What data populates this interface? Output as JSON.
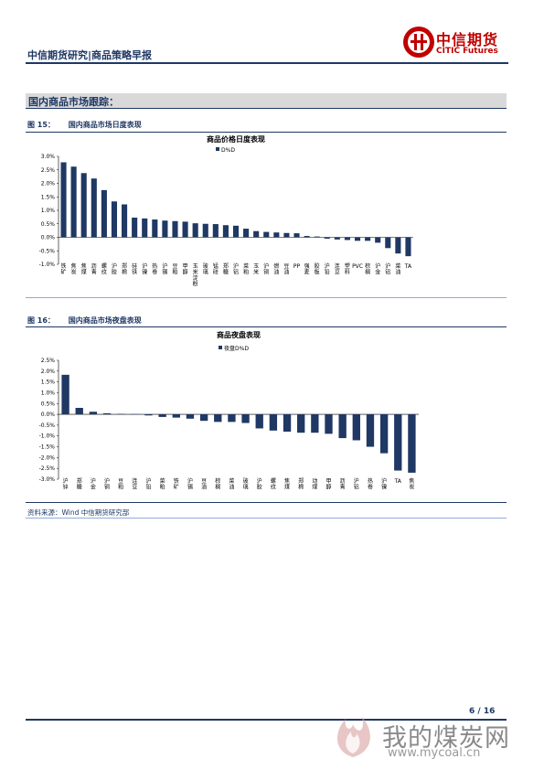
{
  "header": {
    "title": "中信期货研究|商品策略早报",
    "logo_cn": "中信期货",
    "logo_en": "CITIC Futures"
  },
  "section": {
    "title": "国内商品市场跟踪："
  },
  "figure15": {
    "number": "图 15：",
    "caption": "国内商品市场日度表现"
  },
  "figure16": {
    "number": "图 16：",
    "caption": "国内商品市场夜盘表现"
  },
  "source": "资料来源：Wind  中信期货研究部",
  "page": "6 / 16",
  "watermark": {
    "cn": "我的煤炭网",
    "url": "www.mycoal.cn"
  },
  "colors": {
    "bar": "#1f3864",
    "brand_red": "#c00000",
    "section_bg": "#d9d9d9"
  },
  "chart_data": [
    {
      "type": "bar",
      "title": "商品价格日度表现",
      "legend": [
        "D%D"
      ],
      "legend_position": "top-center",
      "ylim": [
        -0.01,
        0.03
      ],
      "yticks": [
        "3.0%",
        "2.5%",
        "2.0%",
        "1.5%",
        "1.0%",
        "0.5%",
        "0.0%",
        "-0.5%",
        "-1.0%"
      ],
      "grid": false,
      "categories": [
        "铁矿",
        "焦炭",
        "焦煤",
        "沥青",
        "螺纹",
        "沪胶",
        "郑棉",
        "硅铁",
        "沪镍",
        "热卷",
        "沪锡",
        "豆粕",
        "甲醇",
        "玉米淀粉",
        "玻璃",
        "锰硅",
        "郑糖",
        "沪铝",
        "菜粕",
        "玉米",
        "沪铜",
        "燃油",
        "豆油",
        "PP",
        "强麦",
        "胶板",
        "沪铅",
        "连豆",
        "塑料",
        "PVC",
        "棕榈",
        "沪金",
        "沪铝",
        "菜油",
        "TA"
      ],
      "series": [
        {
          "name": "D%D",
          "values": [
            0.0278,
            0.0262,
            0.0238,
            0.0218,
            0.0175,
            0.0133,
            0.0122,
            0.0073,
            0.007,
            0.0066,
            0.0062,
            0.006,
            0.0058,
            0.0052,
            0.005,
            0.0049,
            0.0045,
            0.0043,
            0.0032,
            0.0023,
            0.002,
            0.0018,
            0.0016,
            0.0015,
            0.0005,
            0.0003,
            -0.0005,
            -0.0008,
            -0.001,
            -0.0013,
            -0.0013,
            -0.002,
            -0.004,
            -0.006,
            -0.007
          ]
        }
      ]
    },
    {
      "type": "bar",
      "title": "商品夜盘表现",
      "legend": [
        "夜盘D%D"
      ],
      "legend_position": "top-center",
      "ylim": [
        -0.03,
        0.025
      ],
      "yticks": [
        "2.5%",
        "2.0%",
        "1.5%",
        "1.0%",
        "0.5%",
        "0.0%",
        "-0.5%",
        "-1.0%",
        "-1.5%",
        "-2.0%",
        "-2.5%",
        "-3.0%"
      ],
      "grid": false,
      "categories": [
        "沪锌",
        "郑糖",
        "沪金",
        "沪铜",
        "豆粕",
        "连豆",
        "沪铅",
        "菜粕",
        "铁矿",
        "沪锡",
        "豆油",
        "棕榈",
        "菜油",
        "玻璃",
        "沪胶",
        "螺纹",
        "焦煤",
        "郑棉",
        "动煤",
        "甲醇",
        "沥青",
        "沪铝",
        "热卷",
        "沪镍",
        "TA",
        "焦炭"
      ],
      "series": [
        {
          "name": "夜盘D%D",
          "values": [
            0.0183,
            0.003,
            0.0012,
            0.0005,
            0.0002,
            0.0001,
            -0.0005,
            -0.0012,
            -0.0015,
            -0.002,
            -0.003,
            -0.0035,
            -0.0035,
            -0.004,
            -0.0065,
            -0.0075,
            -0.008,
            -0.0085,
            -0.0085,
            -0.009,
            -0.011,
            -0.012,
            -0.015,
            -0.018,
            -0.026,
            -0.027
          ]
        }
      ]
    }
  ]
}
